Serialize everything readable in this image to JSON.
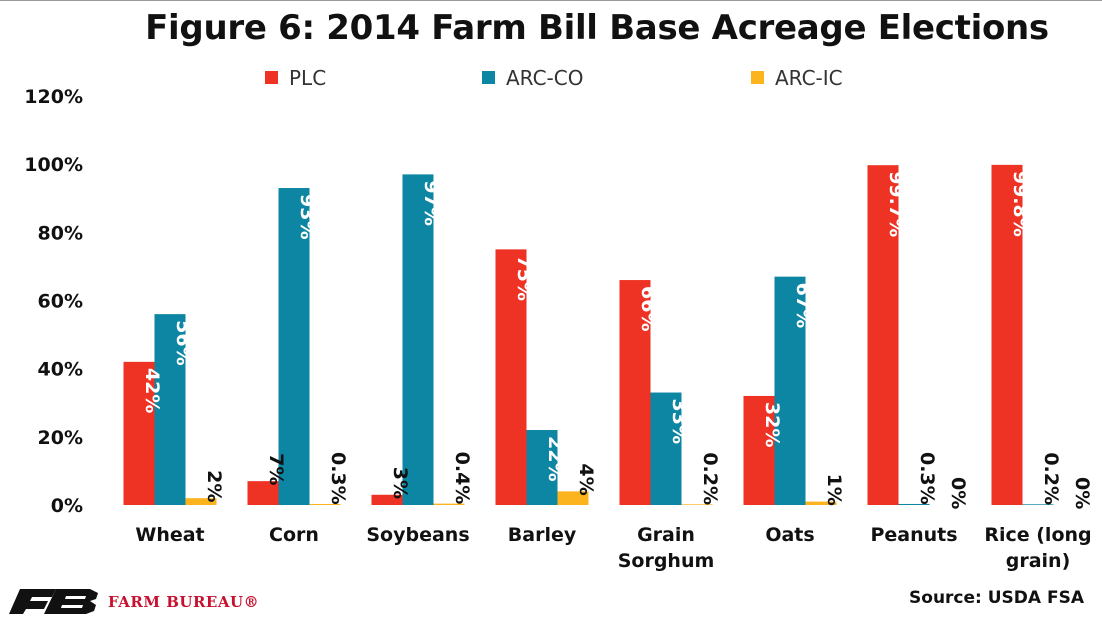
{
  "chart_data": {
    "type": "bar",
    "title": "Figure 6: 2014 Farm Bill Base Acreage Elections",
    "categories": [
      "Wheat",
      "Corn",
      "Soybeans",
      "Barley",
      "Grain Sorghum",
      "Oats",
      "Peanuts",
      "Rice (long grain)"
    ],
    "category_lines": [
      [
        "Wheat"
      ],
      [
        "Corn"
      ],
      [
        "Soybeans"
      ],
      [
        "Barley"
      ],
      [
        "Grain",
        "Sorghum"
      ],
      [
        "Oats"
      ],
      [
        "Peanuts"
      ],
      [
        "Rice (long",
        "grain)"
      ]
    ],
    "series": [
      {
        "name": "PLC",
        "color": "#ee3224",
        "values": [
          42,
          7,
          3,
          75,
          66,
          32,
          99.7,
          99.8
        ],
        "labels": [
          "42%",
          "7%",
          "3%",
          "75%",
          "66%",
          "32%",
          "99.7%",
          "99.8%"
        ]
      },
      {
        "name": "ARC-CO",
        "color": "#0c86a3",
        "values": [
          56,
          93,
          97,
          22,
          33,
          67,
          0.3,
          0.2
        ],
        "labels": [
          "56%",
          "93%",
          "97%",
          "22%",
          "33%",
          "67%",
          "0.3%",
          "0.2%"
        ]
      },
      {
        "name": "ARC-IC",
        "color": "#fbb41e",
        "values": [
          2,
          0.3,
          0.4,
          4,
          0.2,
          1,
          0,
          0
        ],
        "labels": [
          "2%",
          "0.3%",
          "0.4%",
          "4%",
          "0.2%",
          "1%",
          "0%",
          "0%"
        ]
      }
    ],
    "y_ticks": [
      "0%",
      "20%",
      "40%",
      "60%",
      "80%",
      "100%",
      "120%"
    ],
    "ylim": [
      0,
      120
    ],
    "grid": false,
    "legend_position": "top"
  },
  "source": "Source: USDA FSA",
  "logo": {
    "text": "FARM BUREAU®",
    "color": "#c8102e"
  }
}
